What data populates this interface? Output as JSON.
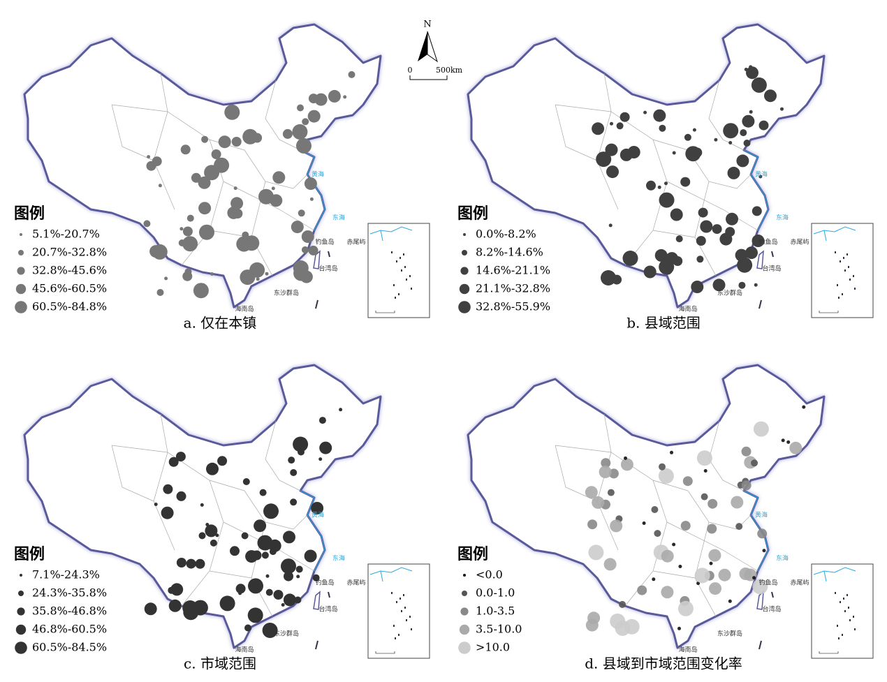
{
  "north_arrow": {
    "label": "N",
    "scale_start": "0",
    "scale_end": "500km"
  },
  "map_labels": [
    "黄海",
    "东海",
    "钓鱼岛",
    "赤尾屿",
    "台湾岛",
    "东沙群岛",
    "海南岛"
  ],
  "panels": [
    {
      "caption": "a. 仅在本镇",
      "legend": {
        "title": "图例",
        "items": [
          "5.1%-20.7%",
          "20.7%-32.8%",
          "32.8%-45.6%",
          "45.6%-60.5%",
          "60.5%-84.8%"
        ]
      }
    },
    {
      "caption": "b. 县域范围",
      "legend": {
        "title": "图例",
        "items": [
          "0.0%-8.2%",
          "8.2%-14.6%",
          "14.6%-21.1%",
          "21.1%-32.8%",
          "32.8%-55.9%"
        ]
      }
    },
    {
      "caption": "c. 市域范围",
      "legend": {
        "title": "图例",
        "items": [
          "7.1%-24.3%",
          "24.3%-35.8%",
          "35.8%-46.8%",
          "46.8%-60.5%",
          "60.5%-84.5%"
        ]
      }
    },
    {
      "caption": "d. 县域到市域范围变化率",
      "legend": {
        "title": "图例",
        "items": [
          "<0.0",
          "0.0-1.0",
          "1.0-3.5",
          "3.5-10.0",
          ">10.0"
        ]
      }
    }
  ]
}
